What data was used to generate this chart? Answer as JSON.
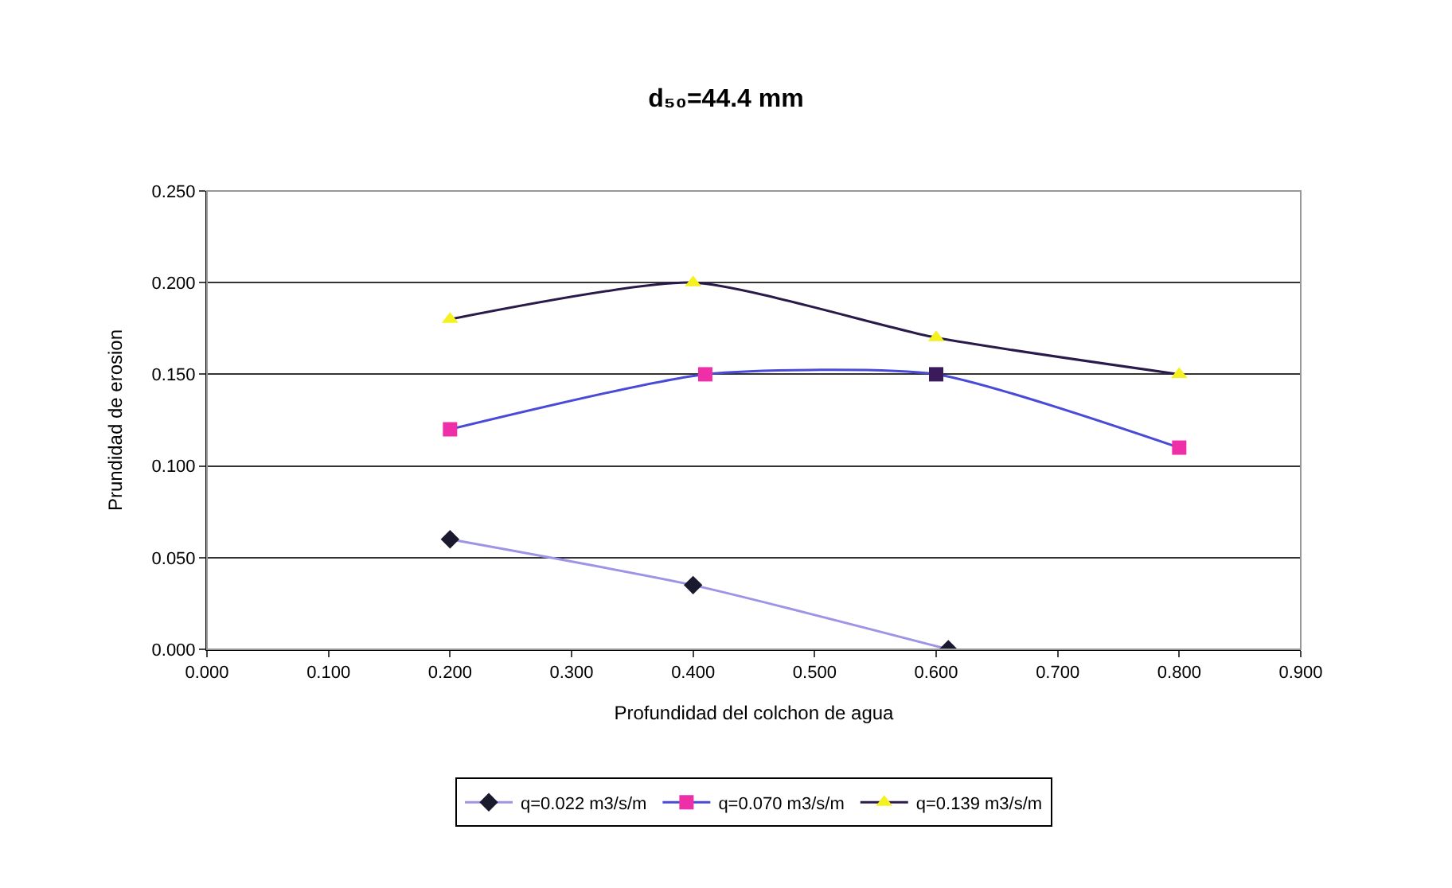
{
  "chart_data": {
    "type": "line",
    "title": "d₅₀=44.4 mm",
    "xlabel": "Profundidad del colchon de agua",
    "ylabel": "Prundidad de erosion",
    "series": [
      {
        "name": "q=0.022 m3/s/m",
        "color": "#9d94e6",
        "colors": [
          "#1a1a2e",
          "#1a1a2e",
          "#1a1a2e"
        ],
        "marker": "diamond",
        "x": [
          0.2,
          0.4,
          0.61
        ],
        "values": [
          0.06,
          0.035,
          0.0
        ]
      },
      {
        "name": "q=0.070 m3/s/m",
        "color": "#4a4ad8",
        "colors": [
          "#ee2fa8",
          "#ee2fa8",
          "#3a1a5a",
          "#ee2fa8"
        ],
        "marker": "square",
        "x": [
          0.2,
          0.41,
          0.6,
          0.8
        ],
        "values": [
          0.12,
          0.15,
          0.15,
          0.11
        ]
      },
      {
        "name": "q=0.139 m3/s/m",
        "color": "#2a1a4a",
        "colors": [
          "#f5f020",
          "#f5f020",
          "#f5f020",
          "#f5f020"
        ],
        "marker": "triangle",
        "x": [
          0.2,
          0.4,
          0.6,
          0.8
        ],
        "values": [
          0.18,
          0.2,
          0.17,
          0.15
        ]
      }
    ],
    "xlim": [
      0,
      0.9
    ],
    "xticks": [
      {
        "value": 0,
        "label": "0.000"
      },
      {
        "value": 0.1,
        "label": "0.100"
      },
      {
        "value": 0.2,
        "label": "0.200"
      },
      {
        "value": 0.3,
        "label": "0.300"
      },
      {
        "value": 0.4,
        "label": "0.400"
      },
      {
        "value": 0.5,
        "label": "0.500"
      },
      {
        "value": 0.6,
        "label": "0.600"
      },
      {
        "value": 0.7,
        "label": "0.700"
      },
      {
        "value": 0.8,
        "label": "0.800"
      },
      {
        "value": 0.9,
        "label": "0.900"
      }
    ],
    "ylim": [
      0,
      0.25
    ],
    "yticks": [
      {
        "value": 0,
        "label": "0.000"
      },
      {
        "value": 0.05,
        "label": "0.050"
      },
      {
        "value": 0.1,
        "label": "0.100"
      },
      {
        "value": 0.15,
        "label": "0.150"
      },
      {
        "value": 0.2,
        "label": "0.200"
      },
      {
        "value": 0.25,
        "label": "0.250"
      }
    ],
    "grid": "y",
    "legend": "bottom",
    "line_style": "solid"
  }
}
